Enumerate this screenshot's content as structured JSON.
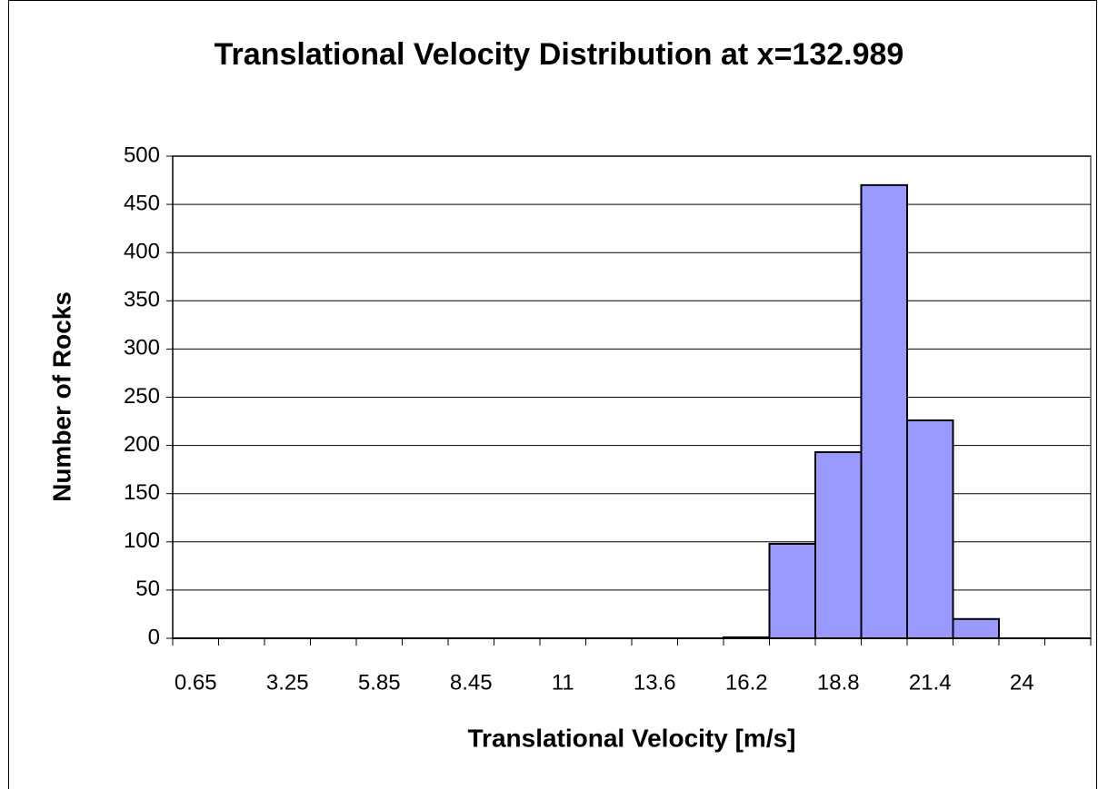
{
  "chart_data": {
    "type": "bar",
    "title": "Translational Velocity Distribution at x=132.989",
    "x_label": "Translational Velocity [m/s]",
    "y_label": "Number of Rocks",
    "categories": [
      "0.65",
      null,
      "3.25",
      null,
      "5.85",
      null,
      "8.45",
      null,
      "11",
      null,
      "13.6",
      null,
      "16.2",
      null,
      "18.8",
      null,
      "21.4",
      null,
      "24",
      null
    ],
    "values": [
      0,
      0,
      0,
      0,
      0,
      0,
      0,
      0,
      0,
      0,
      0,
      0,
      1,
      98,
      193,
      470,
      226,
      20,
      0,
      0
    ],
    "color": "#9999ff",
    "ylim": [
      0,
      500
    ],
    "yticks": [
      0,
      50,
      100,
      150,
      200,
      250,
      300,
      350,
      400,
      450,
      500
    ],
    "grid": true
  }
}
